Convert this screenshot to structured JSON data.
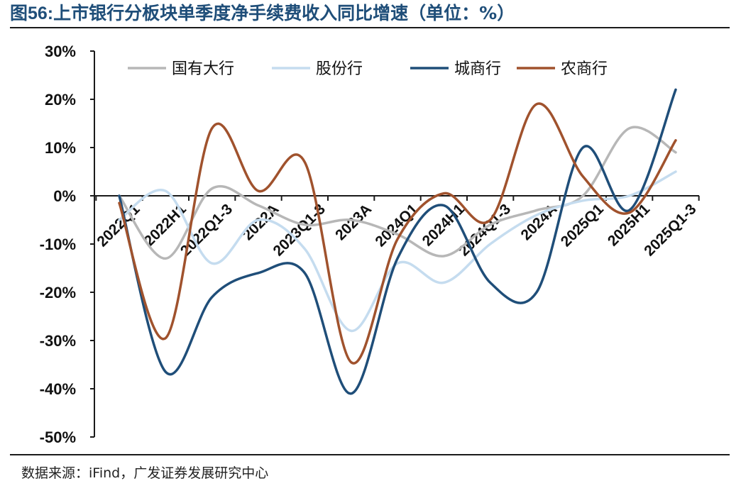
{
  "header": {
    "figure_number": "图56:",
    "title": "上市银行分板块单季度净手续费收入同比增速（单位：%）"
  },
  "footer": {
    "source": "数据来源：iFind，广发证券发展研究中心"
  },
  "chart_data": {
    "type": "line",
    "smooth": true,
    "categories": [
      "2022Q1",
      "2022H1",
      "2022Q1-3",
      "2022A",
      "2023Q1-3",
      "2023A",
      "2024Q1",
      "2024H1",
      "2024Q1-3",
      "2024A",
      "2025Q1",
      "2025H1",
      "2025Q1-3"
    ],
    "ylim": [
      -50,
      30
    ],
    "yticks": [
      -50,
      -40,
      -30,
      -20,
      -10,
      0,
      10,
      20,
      30
    ],
    "ytick_format": "percent",
    "grid": false,
    "legend_position": "top",
    "series": [
      {
        "name": "国有大行",
        "color": "#b7b7b7",
        "values": [
          0,
          -13,
          1.5,
          -2,
          -6,
          -5,
          -8,
          -12.5,
          -6,
          -3,
          0,
          14,
          9
        ]
      },
      {
        "name": "股份行",
        "color": "#c5dcef",
        "values": [
          -5,
          1,
          -14,
          -5,
          -11,
          -28,
          -14,
          -18,
          -10,
          -4,
          -1,
          0,
          5
        ]
      },
      {
        "name": "城商行",
        "color": "#1f4e79",
        "values": [
          0,
          -36.5,
          -21,
          -16,
          -16,
          -41,
          -13,
          -2,
          -18,
          -20,
          10,
          -3,
          22
        ]
      },
      {
        "name": "农商行",
        "color": "#a0522d",
        "values": [
          -1.5,
          -29.5,
          14,
          1,
          7,
          -34.5,
          -9,
          0.5,
          -5,
          19,
          4,
          -3.5,
          11.5
        ]
      }
    ]
  }
}
